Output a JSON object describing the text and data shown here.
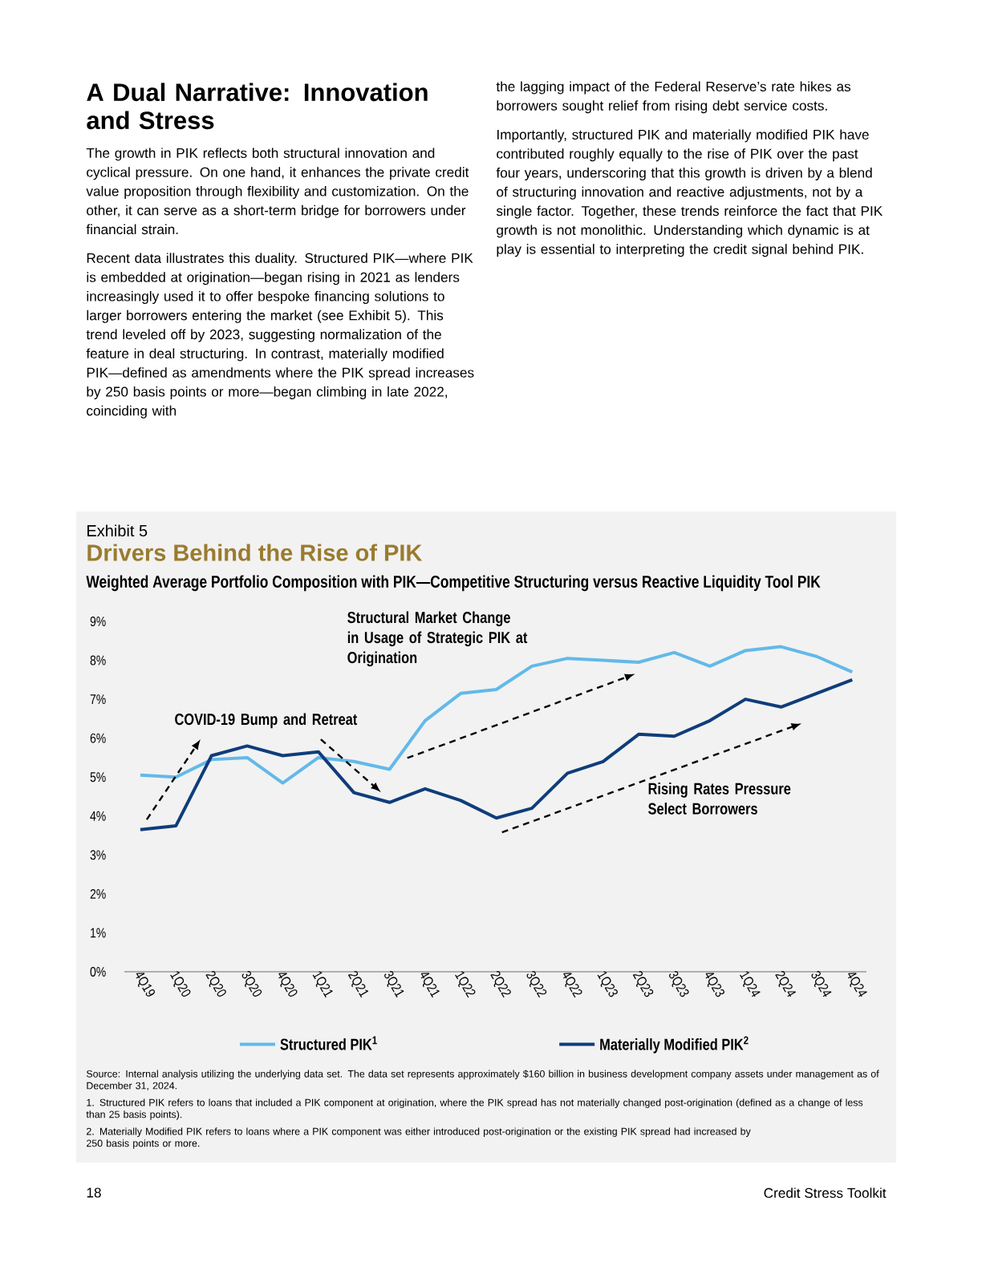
{
  "chart_data": {
    "type": "line",
    "title": "Drivers Behind the Rise of PIK",
    "subtitle": "Weighted Average Portfolio Composition with PIK—Competitive Structuring versus Reactive Liquidity Tool PIK",
    "categories": [
      "4Q19",
      "1Q20",
      "2Q20",
      "3Q20",
      "4Q20",
      "1Q21",
      "2Q21",
      "3Q21",
      "4Q21",
      "1Q22",
      "2Q22",
      "3Q22",
      "4Q22",
      "1Q23",
      "2Q23",
      "3Q23",
      "4Q23",
      "1Q24",
      "2Q24",
      "3Q24",
      "4Q24"
    ],
    "series": [
      {
        "name": "Structured PIK$^{1}$",
        "color": "#63b9e8",
        "values": [
          5.05,
          5.0,
          5.45,
          5.5,
          4.85,
          5.5,
          5.4,
          5.2,
          6.45,
          7.15,
          7.25,
          7.85,
          8.05,
          8.0,
          7.95,
          8.2,
          7.85,
          8.25,
          8.35,
          8.1,
          7.7
        ]
      },
      {
        "name": "Materially Modified PIK$^{2}$",
        "color": "#0f3d7a",
        "values": [
          3.65,
          3.75,
          5.55,
          5.8,
          5.55,
          5.65,
          4.6,
          4.35,
          4.7,
          4.4,
          3.95,
          4.2,
          5.1,
          5.4,
          6.1,
          6.05,
          6.45,
          7.0,
          6.8,
          7.15,
          7.5
        ]
      }
    ],
    "ylim": [
      0,
      9
    ],
    "yticks": [
      {
        "value": 0,
        "label": "0%"
      },
      {
        "value": 1,
        "label": "1%"
      },
      {
        "value": 2,
        "label": "2%"
      },
      {
        "value": 3,
        "label": "3%"
      },
      {
        "value": 4,
        "label": "4%"
      },
      {
        "value": 5,
        "label": "5%"
      },
      {
        "value": 6,
        "label": "6%"
      },
      {
        "value": 7,
        "label": "7%"
      },
      {
        "value": 8,
        "label": "8%"
      },
      {
        "value": 9,
        "label": "9%"
      }
    ],
    "grid": false,
    "legend": "bottom",
    "marker": "none",
    "line_style": "solid",
    "annotations": [
      "A Dual Narrative: Innovation and Stress",
      "The growth in PIK reflects both structural innovation and cyclical pressure. On one hand, it enhances the private credit value proposition through flexibility and customization. On the other, it can serve as a short-term bridge for borrowers under financial strain.",
      "Recent data illustrates this duality. Structured PIK—where PIK is embedded at origination—began rising in 2021 as lenders increasingly used it to offer bespoke financing solutions to larger borrowers entering the market (see Exhibit 5). This trend leveled off by 2023, suggesting normalization of the feature in deal structuring. In contrast, materially modified PIK—defined as amendments where the PIK spread increases by 250 basis points or more—began climbing in late 2022, coinciding with",
      "the lagging impact of the Federal Reserve’s rate hikes as borrowers sought relief from rising debt service costs.",
      "Importantly, structured PIK and materially modified PIK have contributed roughly equally to the rise of PIK over the past four years, underscoring that this growth is driven by a blend of structuring innovation and reactive adjustments, not by a single factor. Together, these trends reinforce the fact that PIK growth is not monolithic. Understanding which dynamic is at play is essential to interpreting the credit signal behind PIK.",
      "Exhibit 5",
      "COVID-19 Bump and Retreat",
      "Structural Market Change in Usage of Strategic PIK at Origination",
      "Rising Rates Pressure Select Borrowers",
      "Source: Internal analysis utilizing the underlying data set. The data set represents approximately $160 billion in business development company assets under management as of December 31, 2024.",
      "1. Structured PIK refers to loans that included a PIK component at origination, where the PIK spread has not materially changed post-origination (defined as a change of less than 25 basis points).",
      "2. Materially Modified PIK refers to loans where a PIK component was either introduced post-origination or the existing PIK spread had increased by 250 basis points or more.",
      "18",
      "Credit Stress Toolkit"
    ]
  }
}
